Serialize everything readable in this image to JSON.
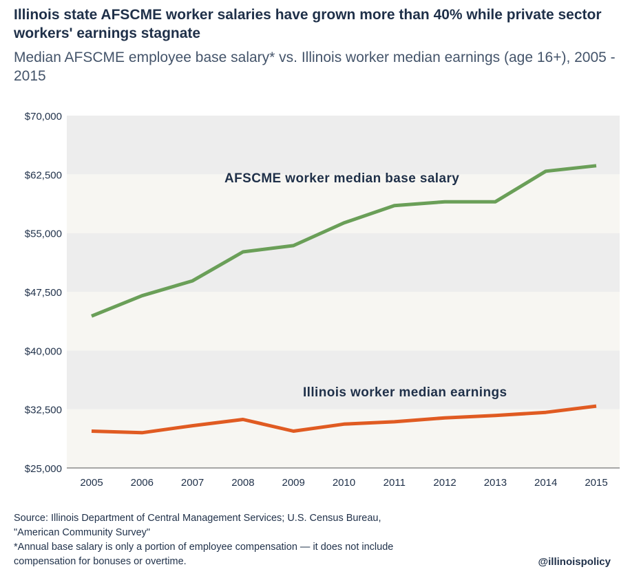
{
  "title": "Illinois state AFSCME worker salaries have grown more than 40% while private sector workers' earnings stagnate",
  "subtitle": "Median AFSCME employee base salary* vs. Illinois worker median earnings (age 16+), 2005 - 2015",
  "source_lines": [
    "Source: Illinois Department of Central Management Services; U.S. Census Bureau,",
    "\"American Community Survey\"",
    "*Annual base salary is only a portion of employee compensation — it does not include",
    "compensation for bonuses or overtime."
  ],
  "handle": "@illinoispolicy",
  "colors": {
    "afscme": "#6a9f58",
    "illinois": "#e05b22",
    "band_dark": "#ededed",
    "band_light": "#f7f6f2",
    "text": "#1f3049"
  },
  "chart_data": {
    "type": "line",
    "x": [
      "2005",
      "2006",
      "2007",
      "2008",
      "2009",
      "2010",
      "2011",
      "2012",
      "2013",
      "2014",
      "2015"
    ],
    "series": [
      {
        "name": "AFSCME worker median base salary",
        "color": "#6a9f58",
        "values": [
          44400,
          47000,
          48900,
          52600,
          53400,
          56300,
          58500,
          59000,
          59000,
          62900,
          63600
        ]
      },
      {
        "name": "Illinois worker median earnings",
        "color": "#e05b22",
        "values": [
          29700,
          29500,
          30400,
          31200,
          29700,
          30600,
          30900,
          31400,
          31700,
          32100,
          32900
        ]
      }
    ],
    "ylim": [
      25000,
      70000
    ],
    "yticks": [
      25000,
      32500,
      40000,
      47500,
      55000,
      62500,
      70000
    ],
    "ytick_labels": [
      "$25,000",
      "$32,500",
      "$40,000",
      "$47,500",
      "$55,000",
      "$62,500",
      "$70,000"
    ],
    "grid": "alternating bands",
    "legend": "inline labels"
  }
}
